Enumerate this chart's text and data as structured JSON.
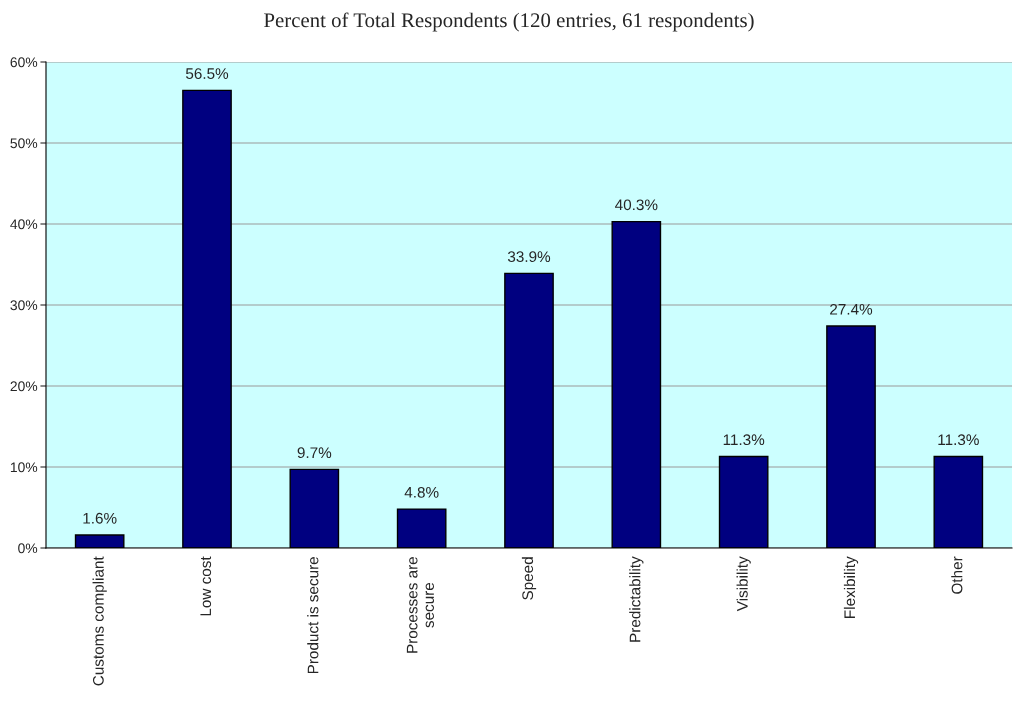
{
  "chart_data": {
    "type": "bar",
    "title": "Percent of Total Respondents (120 entries, 61 respondents)",
    "categories": [
      "Customs compliant",
      "Low cost",
      "Product is secure",
      "Processes are\nsecure",
      "Speed",
      "Predictability",
      "Visibility",
      "Flexibility",
      "Other"
    ],
    "values": [
      1.6,
      56.5,
      9.7,
      4.8,
      33.9,
      40.3,
      11.3,
      27.4,
      11.3
    ],
    "value_labels": [
      "1.6%",
      "56.5%",
      "9.7%",
      "4.8%",
      "33.9%",
      "40.3%",
      "11.3%",
      "27.4%",
      "11.3%"
    ],
    "color": "#000080",
    "ylim": [
      0,
      60
    ],
    "yticks": [
      {
        "value": 0,
        "label": "0%"
      },
      {
        "value": 10,
        "label": "10%"
      },
      {
        "value": 20,
        "label": "20%"
      },
      {
        "value": 30,
        "label": "30%"
      },
      {
        "value": 40,
        "label": "40%"
      },
      {
        "value": 50,
        "label": "50%"
      },
      {
        "value": 60,
        "label": "60%"
      }
    ],
    "grid": "y",
    "legend": false
  }
}
